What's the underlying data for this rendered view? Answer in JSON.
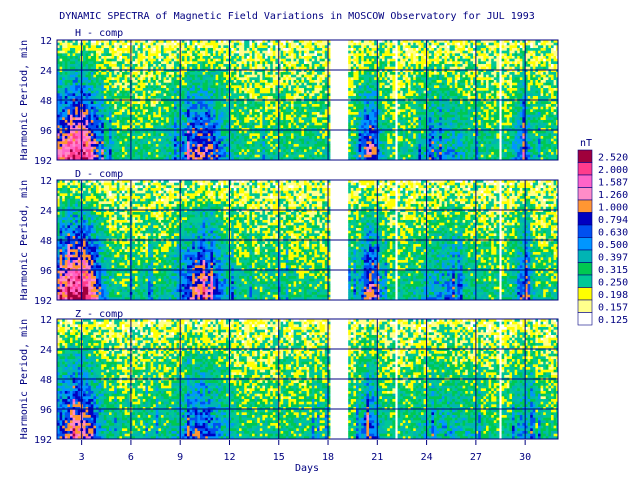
{
  "chart_data": {
    "type": "heatmap",
    "title": "DYNAMIC SPECTRA of Magnetic Field Variations in MOSCOW Observatory for JUL 1993",
    "xlabel": "Days",
    "ylabel": "Harmonic Period, min",
    "xlim": [
      1.5,
      32
    ],
    "x_ticks": [
      3,
      6,
      9,
      12,
      15,
      18,
      21,
      24,
      27,
      30
    ],
    "y_ticks": [
      12,
      24,
      48,
      96,
      192
    ],
    "y_scale": "log2",
    "grid": true,
    "data_gaps_days": [
      [
        18.1,
        19.2
      ],
      [
        22.0,
        22.2
      ],
      [
        28.3,
        28.45
      ]
    ],
    "panels": [
      {
        "label": "H - comp"
      },
      {
        "label": "D - comp"
      },
      {
        "label": "Z - comp"
      }
    ],
    "colorbar": {
      "unit": "nT",
      "levels": [
        "2.520",
        "2.000",
        "1.587",
        "1.260",
        "1.000",
        "0.794",
        "0.630",
        "0.500",
        "0.397",
        "0.315",
        "0.250",
        "0.198",
        "0.157",
        "0.125"
      ],
      "colors": [
        "#a0003c",
        "#ff3c8c",
        "#ff64c8",
        "#ff8cc8",
        "#ff9632",
        "#0000c0",
        "#0050f0",
        "#0096ff",
        "#00b4b4",
        "#00c850",
        "#00c896",
        "#ffff00",
        "#ffff8c",
        "#ffffff"
      ]
    }
  }
}
